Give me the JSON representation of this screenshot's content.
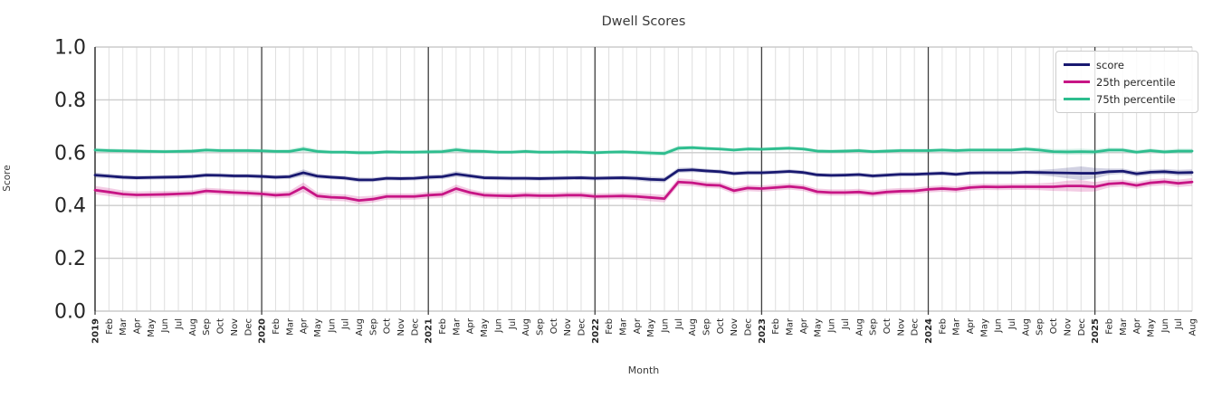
{
  "chart_data": {
    "type": "line",
    "title": "Dwell Scores",
    "xlabel": "Month",
    "ylabel": "Score",
    "ylim": [
      0.0,
      1.0
    ],
    "grid": true,
    "legend_position": "upper right",
    "y_tick_labels": [
      "0.0",
      "0.2",
      "0.4",
      "0.6",
      "0.8",
      "1.0"
    ],
    "x_tick_labels": [
      "2019",
      "Feb",
      "Mar",
      "Apr",
      "May",
      "Jun",
      "Jul",
      "Aug",
      "Sep",
      "Oct",
      "Nov",
      "Dec",
      "2020",
      "Feb",
      "Mar",
      "Apr",
      "May",
      "Jun",
      "Jul",
      "Aug",
      "Sep",
      "Oct",
      "Nov",
      "Dec",
      "2021",
      "Feb",
      "Mar",
      "Apr",
      "May",
      "Jun",
      "Jul",
      "Aug",
      "Sep",
      "Oct",
      "Nov",
      "Dec",
      "2022",
      "Feb",
      "Mar",
      "Apr",
      "May",
      "Jun",
      "Jul",
      "Aug",
      "Sep",
      "Oct",
      "Nov",
      "Dec",
      "2023",
      "Feb",
      "Mar",
      "Apr",
      "May",
      "Jun",
      "Jul",
      "Aug",
      "Sep",
      "Oct",
      "Nov",
      "Dec",
      "2024",
      "Feb",
      "Mar",
      "Apr",
      "May",
      "Jun",
      "Jul",
      "Aug",
      "Sep",
      "Oct",
      "Nov",
      "Dec",
      "2025",
      "Feb",
      "Mar",
      "Apr",
      "May",
      "Jun",
      "Jul",
      "Aug"
    ],
    "year_line_indices": [
      0,
      12,
      24,
      36,
      48,
      60,
      72
    ],
    "series": [
      {
        "name": "score",
        "color": "#191970",
        "band_opacity": 0.2,
        "values": [
          0.515,
          0.511,
          0.507,
          0.505,
          0.506,
          0.507,
          0.508,
          0.51,
          0.515,
          0.514,
          0.512,
          0.512,
          0.51,
          0.507,
          0.509,
          0.524,
          0.511,
          0.507,
          0.504,
          0.497,
          0.497,
          0.503,
          0.502,
          0.503,
          0.507,
          0.509,
          0.519,
          0.512,
          0.505,
          0.504,
          0.503,
          0.503,
          0.502,
          0.503,
          0.504,
          0.505,
          0.503,
          0.504,
          0.505,
          0.503,
          0.499,
          0.497,
          0.533,
          0.535,
          0.531,
          0.528,
          0.521,
          0.524,
          0.524,
          0.526,
          0.529,
          0.525,
          0.516,
          0.514,
          0.515,
          0.517,
          0.512,
          0.515,
          0.518,
          0.518,
          0.52,
          0.522,
          0.518,
          0.523,
          0.524,
          0.524,
          0.524,
          0.526,
          0.525,
          0.524,
          0.523,
          0.522,
          0.522,
          0.528,
          0.53,
          0.52,
          0.526,
          0.528,
          0.524,
          0.525
        ],
        "band": [
          0.01,
          0.009,
          0.008,
          0.008,
          0.008,
          0.008,
          0.008,
          0.008,
          0.008,
          0.008,
          0.008,
          0.008,
          0.008,
          0.008,
          0.009,
          0.013,
          0.009,
          0.008,
          0.008,
          0.009,
          0.008,
          0.008,
          0.008,
          0.008,
          0.009,
          0.009,
          0.011,
          0.009,
          0.008,
          0.008,
          0.008,
          0.008,
          0.008,
          0.008,
          0.008,
          0.008,
          0.008,
          0.008,
          0.008,
          0.009,
          0.01,
          0.01,
          0.01,
          0.009,
          0.008,
          0.008,
          0.008,
          0.008,
          0.008,
          0.008,
          0.008,
          0.008,
          0.008,
          0.008,
          0.008,
          0.008,
          0.008,
          0.008,
          0.008,
          0.008,
          0.008,
          0.008,
          0.008,
          0.008,
          0.008,
          0.008,
          0.008,
          0.008,
          0.01,
          0.014,
          0.02,
          0.026,
          0.02,
          0.012,
          0.01,
          0.01,
          0.01,
          0.01,
          0.011,
          0.012
        ]
      },
      {
        "name": "25th percentile",
        "color": "#c71585",
        "band_opacity": 0.22,
        "values": [
          0.458,
          0.451,
          0.443,
          0.44,
          0.441,
          0.442,
          0.444,
          0.446,
          0.455,
          0.452,
          0.449,
          0.447,
          0.444,
          0.439,
          0.442,
          0.469,
          0.436,
          0.431,
          0.429,
          0.419,
          0.424,
          0.434,
          0.434,
          0.434,
          0.439,
          0.442,
          0.464,
          0.449,
          0.439,
          0.437,
          0.436,
          0.439,
          0.437,
          0.437,
          0.439,
          0.439,
          0.434,
          0.435,
          0.436,
          0.434,
          0.43,
          0.426,
          0.489,
          0.486,
          0.478,
          0.476,
          0.456,
          0.466,
          0.464,
          0.468,
          0.472,
          0.467,
          0.452,
          0.449,
          0.449,
          0.451,
          0.445,
          0.451,
          0.454,
          0.455,
          0.461,
          0.464,
          0.461,
          0.468,
          0.471,
          0.47,
          0.471,
          0.471,
          0.471,
          0.471,
          0.474,
          0.474,
          0.471,
          0.482,
          0.485,
          0.476,
          0.486,
          0.49,
          0.484,
          0.489
        ],
        "band": [
          0.016,
          0.015,
          0.014,
          0.013,
          0.013,
          0.013,
          0.012,
          0.012,
          0.012,
          0.012,
          0.012,
          0.012,
          0.012,
          0.012,
          0.013,
          0.018,
          0.014,
          0.013,
          0.013,
          0.015,
          0.013,
          0.012,
          0.012,
          0.012,
          0.013,
          0.013,
          0.015,
          0.013,
          0.012,
          0.012,
          0.012,
          0.012,
          0.012,
          0.012,
          0.012,
          0.012,
          0.012,
          0.012,
          0.012,
          0.013,
          0.014,
          0.014,
          0.014,
          0.013,
          0.012,
          0.012,
          0.012,
          0.012,
          0.012,
          0.012,
          0.012,
          0.012,
          0.012,
          0.012,
          0.012,
          0.012,
          0.012,
          0.012,
          0.012,
          0.012,
          0.012,
          0.012,
          0.012,
          0.012,
          0.012,
          0.012,
          0.012,
          0.012,
          0.013,
          0.016,
          0.02,
          0.022,
          0.018,
          0.014,
          0.013,
          0.013,
          0.013,
          0.013,
          0.014,
          0.015
        ]
      },
      {
        "name": "75th percentile",
        "color": "#2dbd8e",
        "band_opacity": 0.2,
        "values": [
          0.61,
          0.608,
          0.607,
          0.606,
          0.605,
          0.604,
          0.605,
          0.606,
          0.61,
          0.608,
          0.608,
          0.608,
          0.607,
          0.605,
          0.605,
          0.614,
          0.605,
          0.602,
          0.602,
          0.6,
          0.6,
          0.603,
          0.602,
          0.602,
          0.603,
          0.604,
          0.611,
          0.606,
          0.605,
          0.602,
          0.602,
          0.605,
          0.602,
          0.602,
          0.603,
          0.602,
          0.6,
          0.602,
          0.603,
          0.601,
          0.599,
          0.597,
          0.617,
          0.619,
          0.616,
          0.614,
          0.61,
          0.614,
          0.613,
          0.615,
          0.617,
          0.614,
          0.606,
          0.605,
          0.606,
          0.608,
          0.604,
          0.606,
          0.608,
          0.608,
          0.608,
          0.61,
          0.608,
          0.61,
          0.61,
          0.61,
          0.61,
          0.614,
          0.61,
          0.604,
          0.603,
          0.604,
          0.603,
          0.61,
          0.61,
          0.602,
          0.608,
          0.603,
          0.606,
          0.606
        ],
        "band": [
          0.008,
          0.008,
          0.007,
          0.007,
          0.007,
          0.007,
          0.007,
          0.007,
          0.007,
          0.007,
          0.007,
          0.007,
          0.007,
          0.007,
          0.008,
          0.01,
          0.008,
          0.007,
          0.007,
          0.008,
          0.007,
          0.007,
          0.007,
          0.007,
          0.008,
          0.008,
          0.009,
          0.008,
          0.007,
          0.007,
          0.007,
          0.007,
          0.007,
          0.007,
          0.007,
          0.007,
          0.007,
          0.007,
          0.007,
          0.008,
          0.009,
          0.009,
          0.009,
          0.008,
          0.007,
          0.007,
          0.007,
          0.007,
          0.007,
          0.007,
          0.007,
          0.007,
          0.007,
          0.007,
          0.007,
          0.007,
          0.007,
          0.007,
          0.007,
          0.007,
          0.007,
          0.007,
          0.007,
          0.007,
          0.007,
          0.007,
          0.007,
          0.008,
          0.009,
          0.01,
          0.011,
          0.011,
          0.01,
          0.009,
          0.008,
          0.008,
          0.008,
          0.008,
          0.009,
          0.009
        ]
      }
    ],
    "style": {
      "month_grid_color": "#dedede",
      "major_grid_color": "#cccccc",
      "year_line_color": "#404040",
      "spine_color": "#3c3c3c",
      "tick_label_color": "#262626"
    }
  }
}
